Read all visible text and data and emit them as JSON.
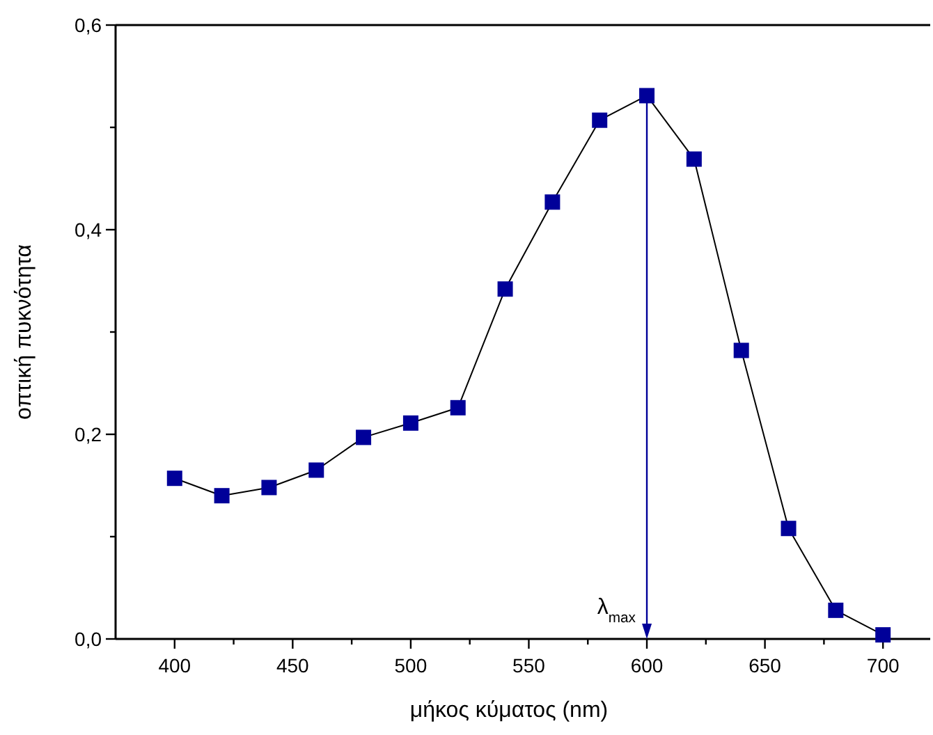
{
  "chart_data": {
    "type": "line",
    "xlabel": "μήκος κύματος (nm)",
    "ylabel": "οπτική πυκνότητα",
    "x": [
      400,
      420,
      440,
      460,
      480,
      500,
      520,
      540,
      560,
      580,
      600,
      620,
      640,
      660,
      680,
      700
    ],
    "series": [
      {
        "color": "#000099",
        "values": [
          0.157,
          0.14,
          0.148,
          0.165,
          0.197,
          0.211,
          0.226,
          0.342,
          0.427,
          0.507,
          0.531,
          0.469,
          0.282,
          0.108,
          0.028,
          0.004
        ]
      }
    ],
    "xlim": [
      375,
      720
    ],
    "xticks": [
      400,
      {
        "value": 425,
        "label": null
      },
      450,
      {
        "value": 475,
        "label": null
      },
      500,
      {
        "value": 525,
        "label": null
      },
      550,
      {
        "value": 575,
        "label": null
      },
      600,
      {
        "value": 625,
        "label": null
      },
      650,
      {
        "value": 675,
        "label": null
      },
      700
    ],
    "ylim": [
      0,
      0.6
    ],
    "yticks": [
      {
        "value": 0,
        "label": "0,0"
      },
      {
        "value": 0.1,
        "label": null
      },
      {
        "value": 0.2,
        "label": "0,2"
      },
      {
        "value": 0.3,
        "label": null
      },
      {
        "value": 0.4,
        "label": "0,4"
      },
      {
        "value": 0.5,
        "label": null
      },
      {
        "value": 0.6,
        "label": "0,6"
      }
    ],
    "marker": "square",
    "line_style": "solid",
    "grid": false,
    "ref_lines": [
      {
        "axis": "x",
        "value": 600,
        "label": "λ$_{max}$",
        "color": "#000099"
      }
    ]
  }
}
